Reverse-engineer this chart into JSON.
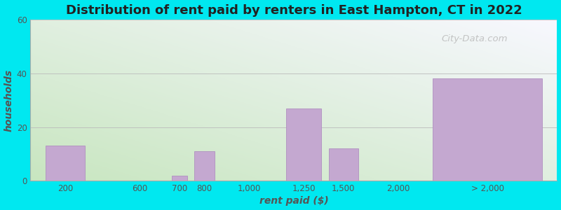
{
  "title": "Distribution of rent paid by renters in East Hampton, CT in 2022",
  "xlabel": "rent paid ($)",
  "ylabel": "households",
  "bar_labels": [
    "200",
    "600",
    "700",
    "800",
    "1,000",
    "1,250",
    "1,500",
    "2,000",
    "> 2,000"
  ],
  "bar_values": [
    13,
    0,
    2,
    11,
    0,
    27,
    12,
    0,
    38
  ],
  "bar_color": "#c4a8d0",
  "bar_edgecolor": "#b090c0",
  "ylim": [
    0,
    60
  ],
  "yticks": [
    0,
    20,
    40,
    60
  ],
  "outer_bg": "#00e8f0",
  "title_fontsize": 13,
  "axis_label_fontsize": 10,
  "tick_fontsize": 8.5,
  "watermark_text": "City-Data.com"
}
